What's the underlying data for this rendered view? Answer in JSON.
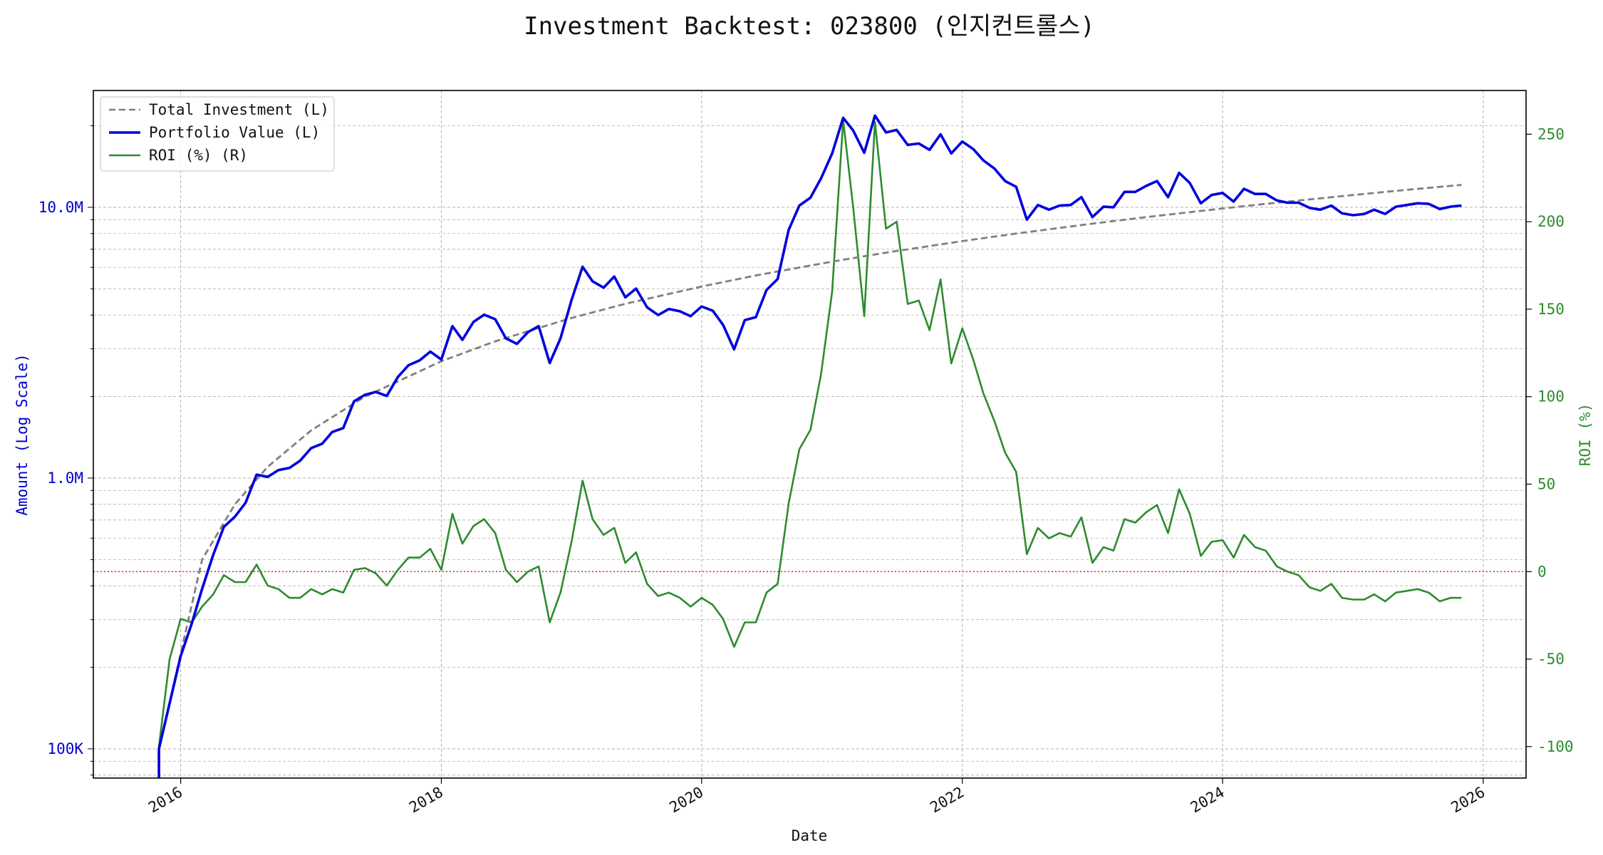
{
  "chart_data": {
    "type": "line",
    "title": "Investment Backtest: 023800 (인지컨트롤스)",
    "xlabel": "Date",
    "ylabel_left": "Amount (Log Scale)",
    "ylabel_right": "ROI (%)",
    "x_ticks": [
      "2016",
      "2018",
      "2020",
      "2022",
      "2024",
      "2026"
    ],
    "y_left_ticks": [
      {
        "value": 100000,
        "label": "100K"
      },
      {
        "value": 1000000,
        "label": "1.0M"
      },
      {
        "value": 10000000,
        "label": "10.0M"
      }
    ],
    "y_right_ticks": [
      -100,
      -50,
      0,
      50,
      100,
      150,
      200,
      250
    ],
    "y_left_range": [
      78000,
      27000000
    ],
    "y_right_range": [
      -118,
      275
    ],
    "x_range": [
      "2015-05-01",
      "2026-05-01"
    ],
    "y_left_scale": "log",
    "grid": true,
    "legend_position": "top-left",
    "zero_line": {
      "value": 0,
      "axis": "right",
      "color": "#d62728",
      "style": "dotted"
    },
    "series": [
      {
        "name": "Total Investment (L)",
        "axis": "left",
        "color": "#808080",
        "style": "dashed",
        "x": [
          "2015-11-01",
          "2016-03-01",
          "2016-06-01",
          "2016-09-01",
          "2017-01-01",
          "2017-06-01",
          "2018-01-01",
          "2018-06-01",
          "2019-01-01",
          "2019-06-01",
          "2020-01-01",
          "2020-06-01",
          "2021-01-01",
          "2021-06-01",
          "2022-01-01",
          "2022-06-01",
          "2023-01-01",
          "2023-06-01",
          "2024-01-01",
          "2024-06-01",
          "2025-01-01",
          "2025-06-01",
          "2025-11-01"
        ],
        "values": [
          100000,
          500000,
          800000,
          1100000,
          1500000,
          2000000,
          2700000,
          3200000,
          3900000,
          4400000,
          5100000,
          5600000,
          6300000,
          6800000,
          7500000,
          8000000,
          8700000,
          9200000,
          9900000,
          10400000,
          11100000,
          11600000,
          12100000
        ]
      },
      {
        "name": "Portfolio Value (L)",
        "axis": "left",
        "color": "#0000dd",
        "style": "solid",
        "x": [
          "2015-11-01",
          "2015-11-01",
          "2016-01-01",
          "2016-02-01",
          "2016-03-01",
          "2016-04-01",
          "2016-05-01",
          "2016-06-01",
          "2016-07-01",
          "2016-08-01",
          "2016-09-01",
          "2016-10-01",
          "2016-11-01",
          "2016-12-01",
          "2017-01-01",
          "2017-02-01",
          "2017-03-01",
          "2017-04-01",
          "2017-05-01",
          "2017-06-01",
          "2017-07-01",
          "2017-08-01",
          "2017-09-01",
          "2017-10-01",
          "2017-11-01",
          "2017-12-01",
          "2018-01-01",
          "2018-02-01",
          "2018-03-01",
          "2018-04-01",
          "2018-05-01",
          "2018-06-01",
          "2018-07-01",
          "2018-08-01",
          "2018-09-01",
          "2018-10-01",
          "2018-11-01",
          "2018-12-01",
          "2019-01-01",
          "2019-02-01",
          "2019-03-01",
          "2019-04-01",
          "2019-05-01",
          "2019-06-01",
          "2019-07-01",
          "2019-08-01",
          "2019-09-01",
          "2019-10-01",
          "2019-11-01",
          "2019-12-01",
          "2020-01-01",
          "2020-02-01",
          "2020-03-01",
          "2020-04-01",
          "2020-05-01",
          "2020-06-01",
          "2020-07-01",
          "2020-08-01",
          "2020-09-01",
          "2020-10-01",
          "2020-11-01",
          "2020-12-01",
          "2021-01-01",
          "2021-02-01",
          "2021-03-01",
          "2021-04-01",
          "2021-05-01",
          "2021-06-01",
          "2021-07-01",
          "2021-08-01",
          "2021-09-01",
          "2021-10-01",
          "2021-11-01",
          "2021-12-01",
          "2022-01-01",
          "2022-02-01",
          "2022-03-01",
          "2022-04-01",
          "2022-05-01",
          "2022-06-01",
          "2022-07-01",
          "2022-08-01",
          "2022-09-01",
          "2022-10-01",
          "2022-11-01",
          "2022-12-01",
          "2023-01-01",
          "2023-02-01",
          "2023-03-01",
          "2023-04-01",
          "2023-05-01",
          "2023-06-01",
          "2023-07-01",
          "2023-08-01",
          "2023-09-01",
          "2023-10-01",
          "2023-11-01",
          "2023-12-01",
          "2024-01-01",
          "2024-02-01",
          "2024-03-01",
          "2024-04-01",
          "2024-05-01",
          "2024-06-01",
          "2024-07-01",
          "2024-08-01",
          "2024-09-01",
          "2024-10-01",
          "2024-11-01",
          "2024-12-01",
          "2025-01-01",
          "2025-02-01",
          "2025-03-01",
          "2025-04-01",
          "2025-05-01",
          "2025-06-01",
          "2025-07-01",
          "2025-08-01",
          "2025-09-01",
          "2025-10-01",
          "2025-11-01"
        ],
        "values": [
          78000,
          100000,
          220000,
          290000,
          390000,
          520000,
          660000,
          720000,
          810000,
          1030000,
          1010000,
          1070000,
          1090000,
          1160000,
          1290000,
          1340000,
          1480000,
          1530000,
          1920000,
          2030000,
          2080000,
          2010000,
          2360000,
          2610000,
          2720000,
          2930000,
          2740000,
          3640000,
          3240000,
          3770000,
          4010000,
          3860000,
          3280000,
          3130000,
          3460000,
          3640000,
          2660000,
          3280000,
          4540000,
          6030000,
          5330000,
          5050000,
          5550000,
          4650000,
          5010000,
          4270000,
          4000000,
          4210000,
          4130000,
          3960000,
          4300000,
          4150000,
          3680000,
          2990000,
          3830000,
          3930000,
          4950000,
          5430000,
          8250000,
          10150000,
          10850000,
          12800000,
          15800000,
          21400000,
          19200000,
          15900000,
          21800000,
          18900000,
          19300000,
          17000000,
          17200000,
          16300000,
          18600000,
          15800000,
          17500000,
          16400000,
          14900000,
          13900000,
          12500000,
          11900000,
          9000000,
          10200000,
          9800000,
          10150000,
          10200000,
          10900000,
          9200000,
          10050000,
          10000000,
          11400000,
          11400000,
          12000000,
          12500000,
          10900000,
          13400000,
          12300000,
          10350000,
          11100000,
          11300000,
          10500000,
          11700000,
          11200000,
          11200000,
          10600000,
          10400000,
          10400000,
          9950000,
          9800000,
          10150000,
          9500000,
          9350000,
          9450000,
          9800000,
          9450000,
          10050000,
          10200000,
          10350000,
          10300000,
          9850000,
          10050000,
          10150000
        ]
      },
      {
        "name": "ROI (%) (R)",
        "axis": "right",
        "color": "#2e8b2e",
        "style": "solid",
        "x": [
          "2015-11-01",
          "2015-12-01",
          "2016-01-01",
          "2016-02-01",
          "2016-03-01",
          "2016-04-01",
          "2016-05-01",
          "2016-06-01",
          "2016-07-01",
          "2016-08-01",
          "2016-09-01",
          "2016-10-01",
          "2016-11-01",
          "2016-12-01",
          "2017-01-01",
          "2017-02-01",
          "2017-03-01",
          "2017-04-01",
          "2017-05-01",
          "2017-06-01",
          "2017-07-01",
          "2017-08-01",
          "2017-09-01",
          "2017-10-01",
          "2017-11-01",
          "2017-12-01",
          "2018-01-01",
          "2018-02-01",
          "2018-03-01",
          "2018-04-01",
          "2018-05-01",
          "2018-06-01",
          "2018-07-01",
          "2018-08-01",
          "2018-09-01",
          "2018-10-01",
          "2018-11-01",
          "2018-12-01",
          "2019-01-01",
          "2019-02-01",
          "2019-03-01",
          "2019-04-01",
          "2019-05-01",
          "2019-06-01",
          "2019-07-01",
          "2019-08-01",
          "2019-09-01",
          "2019-10-01",
          "2019-11-01",
          "2019-12-01",
          "2020-01-01",
          "2020-02-01",
          "2020-03-01",
          "2020-04-01",
          "2020-05-01",
          "2020-06-01",
          "2020-07-01",
          "2020-08-01",
          "2020-09-01",
          "2020-10-01",
          "2020-11-01",
          "2020-12-01",
          "2021-01-01",
          "2021-02-01",
          "2021-03-01",
          "2021-04-01",
          "2021-05-01",
          "2021-06-01",
          "2021-07-01",
          "2021-08-01",
          "2021-09-01",
          "2021-10-01",
          "2021-11-01",
          "2021-12-01",
          "2022-01-01",
          "2022-02-01",
          "2022-03-01",
          "2022-04-01",
          "2022-05-01",
          "2022-06-01",
          "2022-07-01",
          "2022-08-01",
          "2022-09-01",
          "2022-10-01",
          "2022-11-01",
          "2022-12-01",
          "2023-01-01",
          "2023-02-01",
          "2023-03-01",
          "2023-04-01",
          "2023-05-01",
          "2023-06-01",
          "2023-07-01",
          "2023-08-01",
          "2023-09-01",
          "2023-10-01",
          "2023-11-01",
          "2023-12-01",
          "2024-01-01",
          "2024-02-01",
          "2024-03-01",
          "2024-04-01",
          "2024-05-01",
          "2024-06-01",
          "2024-07-01",
          "2024-08-01",
          "2024-09-01",
          "2024-10-01",
          "2024-11-01",
          "2024-12-01",
          "2025-01-01",
          "2025-02-01",
          "2025-03-01",
          "2025-04-01",
          "2025-05-01",
          "2025-06-01",
          "2025-07-01",
          "2025-08-01",
          "2025-09-01",
          "2025-10-01",
          "2025-11-01"
        ],
        "values": [
          -100,
          -50,
          -27,
          -29,
          -20,
          -13,
          -2,
          -6,
          -6,
          4,
          -8,
          -10,
          -15,
          -15,
          -10,
          -13,
          -10,
          -12,
          1,
          2,
          -1,
          -8,
          1,
          8,
          8,
          13,
          1,
          33,
          16,
          26,
          30,
          22,
          1,
          -6,
          0,
          3,
          -29,
          -12,
          17,
          52,
          30,
          21,
          25,
          5,
          11,
          -7,
          -14,
          -12,
          -15,
          -20,
          -15,
          -19,
          -27,
          -43,
          -29,
          -29,
          -12,
          -7,
          39,
          70,
          81,
          113,
          160,
          258,
          208,
          146,
          257,
          196,
          200,
          153,
          155,
          138,
          167,
          119,
          139,
          121,
          102,
          86,
          68,
          57,
          10,
          25,
          19,
          22,
          20,
          31,
          5,
          14,
          12,
          30,
          28,
          34,
          38,
          22,
          47,
          33,
          9,
          17,
          18,
          8,
          21,
          14,
          12,
          3,
          0,
          -2,
          -9,
          -11,
          -7,
          -15,
          -16,
          -16,
          -13,
          -17,
          -12,
          -11,
          -10,
          -12,
          -17,
          -15,
          -15
        ]
      }
    ]
  }
}
